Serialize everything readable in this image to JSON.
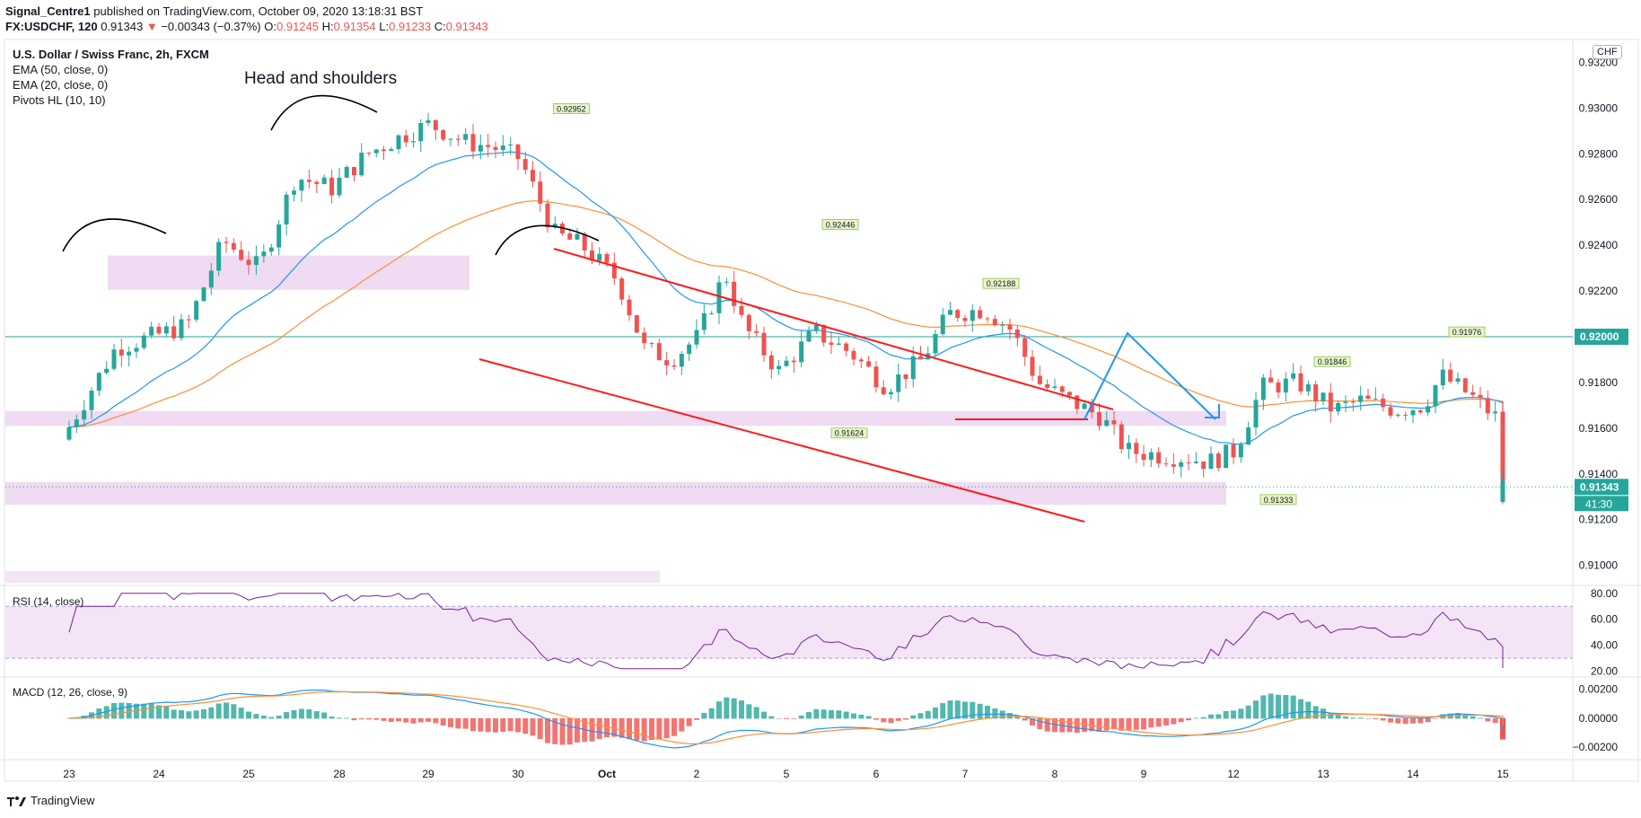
{
  "header": {
    "publisher": "Signal_Centre1",
    "published_text": "published on TradingView.com, October 09, 2020 13:18:31 BST",
    "symbol": "FX:USDCHF, 120",
    "last": "0.91343",
    "arrow": "▼",
    "change": "−0.00343 (−0.37%)",
    "o_label": "O:",
    "o_value": "0.91245",
    "h_label": "H:",
    "h_value": "0.91354",
    "l_label": "L:",
    "l_value": "0.91233",
    "c_label": "C:",
    "c_value": "0.91343"
  },
  "legend": {
    "title": "U.S. Dollar / Swiss Franc, 2h, FXCM",
    "ema50": "EMA (50, close, 0)",
    "ema20": "EMA (20, close, 0)",
    "pivots": "Pivots HL (10, 10)"
  },
  "annotation_text": "Head and shoulders",
  "currency_badge": "CHF",
  "rsi_title": "RSI (14, close)",
  "macd_title": "MACD (12, 26, close, 9)",
  "footer": {
    "brand": "TradingView"
  },
  "colors": {
    "up": "#26a69a",
    "down": "#ef5350",
    "ema20": "#2196f3",
    "ema50": "#ff8f33",
    "zone": "#e1bee7",
    "trend": "#ff1a1a",
    "rsi": "#7b1fa2",
    "macd": "#2196f3",
    "signal": "#ff8f33"
  },
  "chart_data": [
    {
      "type": "candlestick",
      "x_tick_labels": [
        "23",
        "24",
        "25",
        "28",
        "29",
        "30",
        "Oct",
        "2",
        "5",
        "6",
        "7",
        "8",
        "9",
        "12",
        "13",
        "14",
        "15"
      ],
      "y_tick_labels": [
        "0.93200",
        "0.93000",
        "0.92800",
        "0.92600",
        "0.92400",
        "0.92200",
        "0.91800",
        "0.91600",
        "0.91400",
        "0.91200",
        "0.91000"
      ],
      "ylim": [
        0.9092,
        0.933
      ],
      "horizontal_line": {
        "value": 0.92,
        "label": "0.92000"
      },
      "last_price": {
        "value": 0.91343,
        "label": "0.91343",
        "countdown": "41:30"
      },
      "pivot_labels": [
        {
          "label": "0.92952",
          "value": 0.92952,
          "day": 27.6
        },
        {
          "label": "0.92446",
          "value": 0.92446,
          "day": 30.6
        },
        {
          "label": "0.92188",
          "value": 0.92188,
          "day": 32.4
        },
        {
          "label": "0.91624",
          "value": 0.91624,
          "day": 30.7
        },
        {
          "label": "0.91846",
          "value": 0.91846,
          "day": 36.1
        },
        {
          "label": "0.91333",
          "value": 0.91333,
          "day": 35.5
        },
        {
          "label": "0.91976",
          "value": 0.91976,
          "day": 37.6
        }
      ],
      "ohlc_keypoints": [
        [
          22.0,
          0.9155
        ],
        [
          22.3,
          0.9175
        ],
        [
          22.6,
          0.9195
        ],
        [
          23.0,
          0.92
        ],
        [
          23.4,
          0.9205
        ],
        [
          23.8,
          0.9242
        ],
        [
          24.2,
          0.923
        ],
        [
          24.6,
          0.927
        ],
        [
          25.0,
          0.9265
        ],
        [
          25.4,
          0.928
        ],
        [
          25.8,
          0.9288
        ],
        [
          26.1,
          0.9293
        ],
        [
          26.5,
          0.9285
        ],
        [
          26.8,
          0.9283
        ],
        [
          27.1,
          0.9278
        ],
        [
          27.5,
          0.9245
        ],
        [
          27.8,
          0.924
        ],
        [
          28.2,
          0.9225
        ],
        [
          28.5,
          0.9195
        ],
        [
          28.8,
          0.919
        ],
        [
          29.1,
          0.92
        ],
        [
          29.4,
          0.9228
        ],
        [
          29.6,
          0.9205
        ],
        [
          30.0,
          0.9185
        ],
        [
          30.4,
          0.9202
        ],
        [
          30.8,
          0.9193
        ],
        [
          31.2,
          0.9178
        ],
        [
          31.6,
          0.919
        ],
        [
          31.9,
          0.921
        ],
        [
          32.3,
          0.9212
        ],
        [
          32.6,
          0.9203
        ],
        [
          32.9,
          0.918
        ],
        [
          33.2,
          0.9173
        ],
        [
          33.6,
          0.9165
        ],
        [
          33.9,
          0.915
        ],
        [
          34.3,
          0.9148
        ],
        [
          34.6,
          0.9147
        ],
        [
          34.8,
          0.9145
        ],
        [
          35.1,
          0.915
        ],
        [
          35.4,
          0.9178
        ],
        [
          35.8,
          0.918
        ],
        [
          36.2,
          0.9168
        ],
        [
          36.5,
          0.9172
        ],
        [
          36.9,
          0.9168
        ],
        [
          37.2,
          0.917
        ],
        [
          37.4,
          0.9183
        ],
        [
          37.7,
          0.9175
        ],
        [
          38.0,
          0.9165
        ],
        [
          38.3,
          0.915
        ],
        [
          38.5,
          0.9124
        ],
        [
          38.6,
          0.9134
        ]
      ]
    },
    {
      "type": "line",
      "name": "RSI",
      "y_tick_labels": [
        "80.00",
        "60.00",
        "40.00",
        "20.00"
      ],
      "ylim": [
        17,
        84
      ],
      "band": [
        30,
        70
      ]
    },
    {
      "type": "bar",
      "name": "MACD",
      "y_tick_labels": [
        "0.00200",
        "0.00000",
        "−0.00200"
      ],
      "ylim": [
        -0.0028,
        0.0026
      ]
    }
  ]
}
